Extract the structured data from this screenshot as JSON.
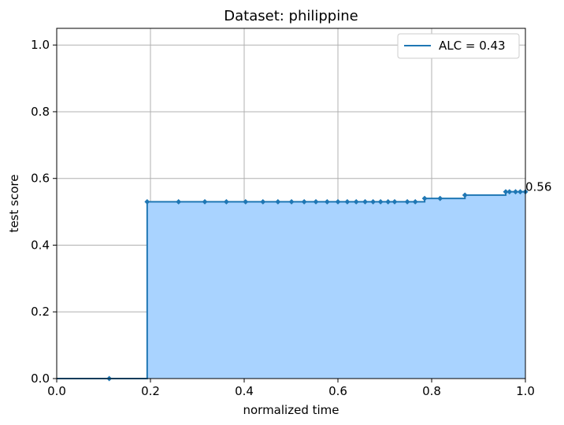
{
  "chart_data": {
    "type": "area",
    "title": "Dataset: philippine",
    "xlabel": "normalized time",
    "ylabel": "test score",
    "xlim": [
      0.0,
      1.0
    ],
    "ylim": [
      0.0,
      1.05
    ],
    "xticks": [
      0.0,
      0.2,
      0.4,
      0.6,
      0.8,
      1.0
    ],
    "xtick_labels": [
      "0.0",
      "0.2",
      "0.4",
      "0.6",
      "0.8",
      "1.0"
    ],
    "yticks": [
      0.0,
      0.2,
      0.4,
      0.6,
      0.8,
      1.0
    ],
    "ytick_labels": [
      "0.0",
      "0.2",
      "0.4",
      "0.6",
      "0.8",
      "1.0"
    ],
    "grid": true,
    "legend_position": "upper right",
    "line_color": "#1f77b4",
    "fill_color": "#a9d3ff",
    "series": [
      {
        "name": "ALC = 0.43",
        "step": true,
        "x": [
          0.112,
          0.193,
          0.26,
          0.316,
          0.362,
          0.403,
          0.44,
          0.472,
          0.501,
          0.528,
          0.553,
          0.577,
          0.6,
          0.62,
          0.639,
          0.658,
          0.675,
          0.691,
          0.707,
          0.721,
          0.748,
          0.765,
          0.785,
          0.818,
          0.871,
          0.958,
          0.966,
          0.979,
          0.989,
          1.0
        ],
        "y": [
          0.0,
          0.53,
          0.53,
          0.53,
          0.53,
          0.53,
          0.53,
          0.53,
          0.53,
          0.53,
          0.53,
          0.53,
          0.53,
          0.53,
          0.53,
          0.53,
          0.53,
          0.53,
          0.53,
          0.53,
          0.53,
          0.53,
          0.54,
          0.54,
          0.55,
          0.56,
          0.56,
          0.56,
          0.56,
          0.56
        ]
      }
    ],
    "annotation": {
      "text": "0.56",
      "x": 1.0,
      "y": 0.56
    }
  }
}
